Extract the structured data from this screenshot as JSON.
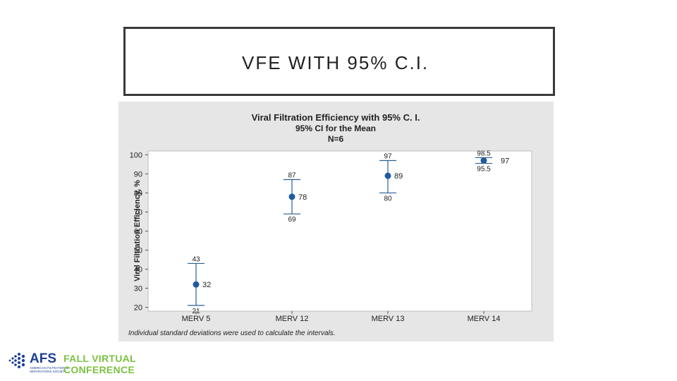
{
  "slide": {
    "title": "VFE WITH 95% C.I."
  },
  "chart_data": {
    "type": "interval",
    "title": "Viral Filtration Efficiency with 95% C. I.",
    "subtitle": "95% CI for the Mean",
    "subtitle2": "N=6",
    "ylabel": "Viral Filtration Efficiency, %",
    "xlabel": "",
    "ylim": [
      18,
      102
    ],
    "yticks": [
      20,
      30,
      40,
      50,
      60,
      70,
      80,
      90,
      100
    ],
    "categories": [
      "MERV 5",
      "MERV 12",
      "MERV 13",
      "MERV 14"
    ],
    "series": [
      {
        "mean": 32,
        "lower": 21,
        "upper": 43,
        "mean_label": "32",
        "lower_label": "21",
        "upper_label": "43"
      },
      {
        "mean": 78,
        "lower": 69,
        "upper": 87,
        "mean_label": "78",
        "lower_label": "69",
        "upper_label": "87"
      },
      {
        "mean": 89,
        "lower": 80,
        "upper": 97,
        "mean_label": "89",
        "lower_label": "80",
        "upper_label": "97"
      },
      {
        "mean": 97,
        "lower": 95.5,
        "upper": 98.5,
        "mean_label": "97",
        "lower_label": "95.5",
        "upper_label": "98.5"
      }
    ],
    "footnote": "Individual standard deviations were used to calculate the intervals.",
    "colors": {
      "point": "#1f5aa0",
      "interval": "#2c5f94",
      "background": "#e6e6e6",
      "plot": "#ffffff"
    }
  },
  "logo": {
    "brand": "AFS",
    "sub_line1": "AMERICAN FILTRATION &",
    "sub_line2": "SEPARATIONS SOCIETY",
    "event_line1": "FALL VIRTUAL",
    "event_line2": "CONFERENCE"
  }
}
